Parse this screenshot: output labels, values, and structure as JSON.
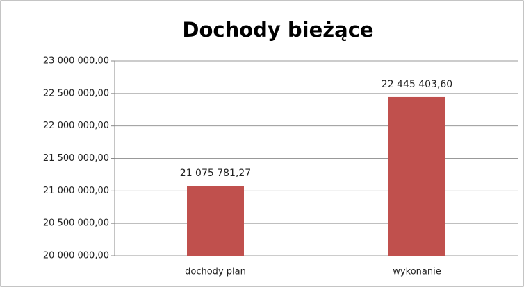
{
  "chart_data": {
    "type": "bar",
    "title": "Dochody bieżące",
    "categories": [
      "dochody plan",
      "wykonanie"
    ],
    "values": [
      21075781.27,
      22445403.6
    ],
    "value_labels": [
      "21 075 781,27",
      "22 445 403,60"
    ],
    "color": "#c0504d",
    "ylim": [
      20000000,
      23000000
    ],
    "yticks": [
      {
        "value": 20000000,
        "label": "20 000 000,00"
      },
      {
        "value": 20500000,
        "label": "20 500 000,00"
      },
      {
        "value": 21000000,
        "label": "21 000 000,00"
      },
      {
        "value": 21500000,
        "label": "21 500 000,00"
      },
      {
        "value": 22000000,
        "label": "22 000 000,00"
      },
      {
        "value": 22500000,
        "label": "22 500 000,00"
      },
      {
        "value": 23000000,
        "label": "23 000 000,00"
      }
    ],
    "grid": true
  }
}
